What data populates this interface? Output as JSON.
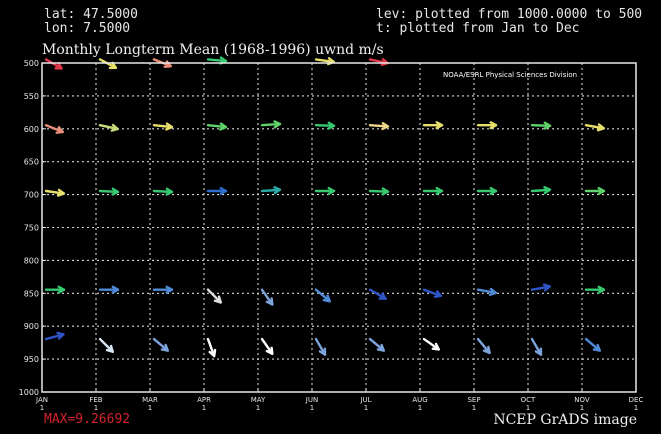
{
  "header": {
    "lat": "lat: 47.5000",
    "lon": "lon: 7.5000",
    "lev": "lev: plotted from 1000.0000 to 500",
    "time": "t: plotted from Jan to Dec"
  },
  "credit": "NOAA/ESRL Physical Sciences Division",
  "stat_text": "MAX=9.26692",
  "footer": "NCEP GrADS image",
  "chart_data": {
    "type": "vector",
    "title": "Monthly Longterm Mean (1968-1996) uwnd m/s",
    "x_categories": [
      "JAN",
      "FEB",
      "MAR",
      "APR",
      "MAY",
      "JUN",
      "JUL",
      "AUG",
      "SEP",
      "OCT",
      "NOV",
      "DEC"
    ],
    "x_sublabel": "1",
    "y_ticks": [
      500,
      550,
      600,
      650,
      700,
      750,
      800,
      850,
      900,
      950,
      1000
    ],
    "ylim": [
      1000,
      500
    ],
    "grid": true,
    "levels": [
      500,
      600,
      700,
      850,
      925
    ],
    "vectors": [
      [
        {
          "angle": 30,
          "color": "#e0384a"
        },
        {
          "angle": 28,
          "color": "#e8e06a"
        },
        {
          "angle": 22,
          "color": "#ec8f7a"
        },
        {
          "angle": 5,
          "color": "#37c96f"
        },
        null,
        {
          "angle": 8,
          "color": "#e8e06a"
        },
        {
          "angle": 12,
          "color": "#e0384a"
        },
        null,
        null,
        null,
        null,
        null
      ],
      [
        {
          "angle": 22,
          "color": "#ec8f7a"
        },
        {
          "angle": 12,
          "color": "#c7dc7a"
        },
        {
          "angle": 6,
          "color": "#e8e06a"
        },
        {
          "angle": 6,
          "color": "#5fd26a"
        },
        {
          "angle": -4,
          "color": "#5fd26a"
        },
        {
          "angle": 2,
          "color": "#37c96f"
        },
        {
          "angle": 4,
          "color": "#f0d98a"
        },
        {
          "angle": 0,
          "color": "#e8e06a"
        },
        {
          "angle": 0,
          "color": "#e8e06a"
        },
        {
          "angle": 2,
          "color": "#5fd26a"
        },
        {
          "angle": 10,
          "color": "#e8e06a"
        },
        null
      ],
      [
        {
          "angle": 8,
          "color": "#e8e06a"
        },
        {
          "angle": 3,
          "color": "#37c96f"
        },
        {
          "angle": 3,
          "color": "#37c96f"
        },
        {
          "angle": 0,
          "color": "#2f6fd0"
        },
        {
          "angle": -4,
          "color": "#2aaaa6"
        },
        {
          "angle": 0,
          "color": "#37c96f"
        },
        {
          "angle": 2,
          "color": "#37c96f"
        },
        {
          "angle": 0,
          "color": "#37c96f"
        },
        {
          "angle": 0,
          "color": "#37c96f"
        },
        {
          "angle": -4,
          "color": "#37c96f"
        },
        {
          "angle": 0,
          "color": "#5fd26a"
        },
        null
      ],
      [
        {
          "angle": 0,
          "color": "#37c96f"
        },
        {
          "angle": 0,
          "color": "#4f8bd6"
        },
        {
          "angle": 0,
          "color": "#4f8bd6"
        },
        {
          "angle": 45,
          "color": "#e0e0e0"
        },
        {
          "angle": 55,
          "color": "#7ea4dc"
        },
        {
          "angle": 40,
          "color": "#4f8bd6"
        },
        {
          "angle": 30,
          "color": "#2f55c8"
        },
        {
          "angle": 20,
          "color": "#2f55c8"
        },
        {
          "angle": 10,
          "color": "#4f8bd6"
        },
        {
          "angle": -10,
          "color": "#2f55c8"
        },
        {
          "angle": 0,
          "color": "#37c96f"
        },
        null
      ],
      [
        {
          "angle": -15,
          "color": "#2f55c8"
        },
        {
          "angle": 45,
          "color": "#d8e6f4"
        },
        {
          "angle": 40,
          "color": "#7ea4dc"
        },
        {
          "angle": 70,
          "color": "#ffffff"
        },
        {
          "angle": 55,
          "color": "#ffffff"
        },
        {
          "angle": 60,
          "color": "#7ea4dc"
        },
        {
          "angle": 40,
          "color": "#7ea4dc"
        },
        {
          "angle": 35,
          "color": "#ffffff"
        },
        {
          "angle": 50,
          "color": "#7ea4dc"
        },
        {
          "angle": 60,
          "color": "#7ea4dc"
        },
        {
          "angle": 40,
          "color": "#4f8bd6"
        },
        null
      ]
    ]
  }
}
